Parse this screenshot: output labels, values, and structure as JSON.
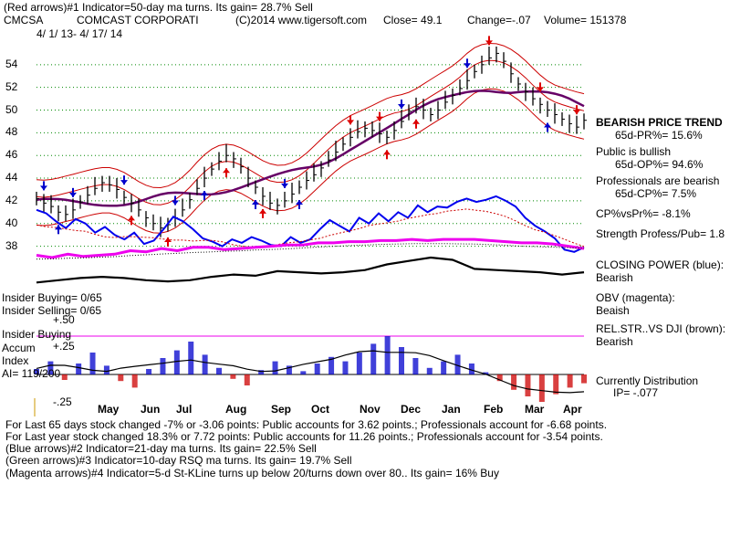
{
  "header": {
    "line1": "(Red arrows)#1 Indicator=50-day ma turns. Its gain= 28.7% Sell",
    "ticker": "CMCSA",
    "company": "COMCAST CORPORATI",
    "copyright": "(C)2014 www.tigersoft.com",
    "close": "Close=  49.1",
    "change": "Change=-.07",
    "volume": "Volume= 151378",
    "daterange": "4/ 1/ 13-  4/ 17/ 14"
  },
  "right_panel": {
    "trend_title": "BEARISH PRICE TREND",
    "pr": "65d-PR%= 15.6%",
    "public": "Public is bullish",
    "op": "65d-OP%= 94.6%",
    "professionals": "Professionals are bearish",
    "cp": "65d-CP%= 7.5%",
    "cpvspr": "CP%vsPr%= -8.1%",
    "strength": "Strength Profess/Pub= 1.8",
    "closing_power": "CLOSING POWER (blue):",
    "closing_power_val": "Bearish",
    "obv": "OBV (magenta):",
    "obv_val": "Beaish",
    "relstr": "REL.STR..VS DJI (brown):",
    "relstr_val": "Bearish",
    "distribution": "Currently Distribution",
    "ip": "IP= -.077"
  },
  "left_panel": {
    "insider_buying": "Insider Buying= 0/65",
    "insider_selling": "Insider Selling= 0/65",
    "plus50": "+.50",
    "accum1": "Insider Buying",
    "accum2": "Accum",
    "plus25": "+.25",
    "index": "Index",
    "ai": "AI= 119/200",
    "minus25": "-.25"
  },
  "footer": {
    "line1": "For Last 65 days stock changed -7% or -3.06 points:  Public accounts for  3.62 points.;  Professionals account for -6.68 points.",
    "line2": "For Last year stock changed  18.3% or 7.72 points:  Public accounts for  11.26 points.;  Professionals account for -3.54 points.",
    "line3": "(Blue arrows)#2 Indicator=21-day ma turns. Its gain= 22.5% Sell",
    "line4": "(Green arrows)#3 Indicator=10-day RSQ ma turns. Its gain= 19.7% Sell",
    "line5": "(Magenta arrows)#4 Indicator=5-d St-KLine turns up below 20/turns down over 80.. Its gain= 16% Buy"
  },
  "colors": {
    "price": "#000000",
    "bands": "#cc0000",
    "ma50": "#660066",
    "closing_power": "#0000ee",
    "obv": "#ee00ee",
    "relstr": "#000000",
    "accum_pos": "#0000cc",
    "accum_neg": "#cc0000",
    "grid": "#008800",
    "arrow_red": "#dd0000",
    "arrow_blue": "#0000cc"
  },
  "chart_data": {
    "type": "line",
    "x_labels": [
      "May",
      "Jun",
      "Jul",
      "Aug",
      "Sep",
      "Oct",
      "Nov",
      "Dec",
      "Jan",
      "Feb",
      "Mar",
      "Apr"
    ],
    "y_ticks": [
      38,
      40,
      42,
      44,
      46,
      48,
      50,
      52,
      54
    ],
    "ylim": [
      37,
      56
    ],
    "price": [
      42.2,
      41.8,
      41.5,
      41.0,
      40.8,
      41.2,
      41.9,
      42.5,
      43.1,
      43.6,
      43.4,
      43.0,
      42.3,
      41.8,
      41.2,
      40.5,
      40.0,
      39.6,
      39.9,
      40.5,
      41.2,
      42.1,
      43.1,
      44.0,
      44.8,
      45.5,
      46.0,
      45.7,
      45.0,
      44.0,
      43.2,
      42.4,
      41.8,
      41.6,
      42.0,
      42.6,
      43.2,
      43.8,
      44.3,
      44.9,
      45.6,
      46.3,
      47.0,
      47.6,
      48.1,
      48.4,
      48.2,
      47.9,
      47.6,
      48.2,
      49.0,
      49.9,
      50.3,
      50.0,
      49.6,
      50.0,
      50.7,
      51.3,
      51.9,
      52.6,
      53.4,
      54.0,
      54.6,
      55.0,
      54.3,
      53.2,
      52.3,
      51.6,
      51.0,
      50.5,
      50.0,
      49.6,
      49.2,
      48.8,
      48.5,
      49.1
    ],
    "closing_power": [
      41.2,
      40.9,
      40.2,
      39.6,
      40.4,
      40.0,
      39.2,
      39.7,
      39.0,
      38.6,
      39.2,
      38.2,
      38.5,
      39.5,
      40.6,
      40.2,
      39.5,
      38.7,
      38.4,
      38.0,
      38.6,
      38.3,
      38.8,
      38.5,
      38.1,
      38.0,
      38.8,
      38.3,
      38.6,
      39.5,
      40.3,
      39.8,
      39.3,
      40.5,
      40.0,
      40.9,
      40.2,
      41.0,
      40.5,
      41.6,
      41.0,
      41.5,
      41.4,
      41.9,
      42.2,
      41.9,
      42.1,
      42.4,
      42.0,
      41.5,
      40.5,
      39.8,
      39.3,
      38.7,
      37.7,
      37.5,
      37.9
    ],
    "obv": [
      37.2,
      37.0,
      37.3,
      37.1,
      37.2,
      37.3,
      37.6,
      37.5,
      37.8,
      37.6,
      37.9,
      37.9,
      37.7,
      37.8,
      37.9,
      38.0,
      38.1,
      38.1,
      38.3,
      38.3,
      38.4,
      38.4,
      38.5,
      38.5,
      38.6,
      38.5,
      38.6,
      38.6,
      38.6,
      38.5,
      38.4,
      38.3,
      38.3,
      38.2,
      38.0,
      37.8
    ],
    "relstr": [
      34.8,
      35.0,
      35.2,
      35.3,
      35.2,
      35.0,
      34.9,
      35.0,
      35.3,
      35.5,
      35.4,
      35.8,
      35.7,
      35.6,
      35.7,
      35.9,
      36.4,
      36.7,
      37.0,
      36.8,
      36.0,
      35.9,
      35.8,
      35.7,
      35.5,
      35.7
    ],
    "accum_index": [
      0.05,
      0.12,
      -0.05,
      0.1,
      0.2,
      0.08,
      -0.06,
      -0.12,
      0.05,
      0.15,
      0.22,
      0.3,
      0.18,
      0.06,
      -0.04,
      -0.1,
      0.04,
      0.12,
      0.08,
      0.03,
      0.1,
      0.16,
      0.12,
      0.2,
      0.28,
      0.35,
      0.25,
      0.15,
      0.06,
      0.12,
      0.18,
      0.1,
      0.02,
      -0.06,
      -0.14,
      -0.2,
      -0.25,
      -0.18,
      -0.12,
      -0.08
    ]
  },
  "arrows": {
    "blue_down": [
      [
        1,
        0
      ],
      [
        4,
        0
      ],
      [
        9,
        0
      ],
      [
        15,
        0
      ],
      [
        26,
        0
      ],
      [
        39,
        0
      ],
      [
        46,
        0
      ]
    ],
    "blue_up": [
      [
        2,
        1
      ],
      [
        18,
        1
      ],
      [
        23,
        1
      ],
      [
        28,
        1
      ],
      [
        54,
        1
      ]
    ],
    "red_up": [
      [
        10,
        1
      ],
      [
        14,
        1
      ],
      [
        20,
        1
      ],
      [
        24,
        1
      ],
      [
        37,
        1
      ],
      [
        40,
        1
      ]
    ],
    "red_down": [
      [
        33,
        0
      ],
      [
        36,
        0
      ],
      [
        48,
        0
      ],
      [
        53,
        0
      ],
      [
        57,
        0
      ]
    ]
  }
}
